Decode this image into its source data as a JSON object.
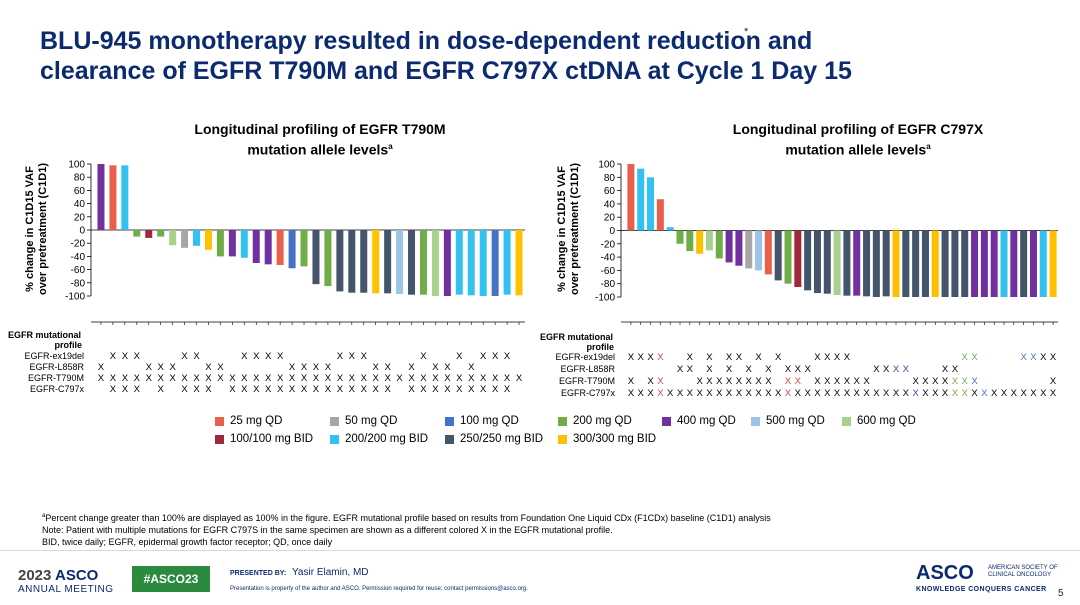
{
  "slide": {
    "title_line1": "BLU-945 monotherapy resulted in dose-dependent reduction and",
    "title_line2": "clearance of EGFR T790M and EGFR C797X ctDNA at Cycle 1 Day 15",
    "mark": "*",
    "page_number": "5"
  },
  "charts": {
    "left": {
      "title_line1": "Longitudinal profiling of EGFR T790M",
      "title_line2_main": "mutation allele levels",
      "title_sup": "a",
      "ylabel_line1": "% change in C1D15 VAF",
      "ylabel_line2": "over pretreatment (C1D1)"
    },
    "right": {
      "title_line1": "Longitudinal profiling of EGFR C797X",
      "title_line2_main": "mutation allele levels",
      "title_sup": "a",
      "ylabel_line1": "% change in C1D15 VAF",
      "ylabel_line2": "over pretreatment (C1D1)"
    }
  },
  "mutational_profile": {
    "header_line1": "EGFR mutational",
    "header_line2": "profile",
    "rows": [
      "EGFR-ex19del",
      "EGFR-L858R",
      "EGFR-T790M",
      "EGFR-C797x"
    ]
  },
  "legend": {
    "items": [
      {
        "label": "25 mg QD",
        "color": "#e8604c"
      },
      {
        "label": "50 mg QD",
        "color": "#a6a6a6"
      },
      {
        "label": "100 mg QD",
        "color": "#4472c4"
      },
      {
        "label": "200 mg QD",
        "color": "#70ad47"
      },
      {
        "label": "400 mg QD",
        "color": "#7030a0"
      },
      {
        "label": "500 mg QD",
        "color": "#9dc3e6"
      },
      {
        "label": "600 mg QD",
        "color": "#a9d18e"
      },
      {
        "label": "100/100 mg BID",
        "color": "#a0283c"
      },
      {
        "label": "200/200 mg BID",
        "color": "#33c1f0"
      },
      {
        "label": "250/250 mg BID",
        "color": "#44546a"
      },
      {
        "label": "300/300 mg BID",
        "color": "#ffc000"
      }
    ]
  },
  "footnotes": {
    "a_mark": "a",
    "line1": "Percent change greater than 100% are displayed as 100% in the figure. EGFR mutational profile based on results from Foundation One Liquid CDx (F1CDx) baseline (C1D1) analysis",
    "line2": "Note: Patient with multiple mutations for EGFR C797S in the same specimen are shown as a different colored X in the EGFR mutational profile.",
    "line3": "BID, twice daily; EGFR, epidermal growth factor receptor; QD, once daily"
  },
  "footer": {
    "year": "2023",
    "asco": "ASCO",
    "annual_meeting": "ANNUAL MEETING",
    "hashtag": "#ASCO23",
    "presented_by": "PRESENTED BY:",
    "presenter": "Yasir Elamin, MD",
    "disclaimer": "Presentation is property of the author and ASCO. Permission required for reuse; contact permissions@asco.org.",
    "logo": "ASCO",
    "org_line1": "AMERICAN SOCIETY OF",
    "org_line2": "CLINICAL ONCOLOGY",
    "tagline": "KNOWLEDGE CONQUERS CANCER"
  },
  "chart_data": [
    {
      "type": "bar",
      "title": "Longitudinal profiling of EGFR T790M mutation allele levels",
      "xlabel": "",
      "ylabel": "% change in C1D15 VAF over pretreatment (C1D1)",
      "ylim": [
        -100,
        100
      ],
      "yticks": [
        "100",
        "80",
        "60",
        "40",
        "20",
        "0",
        "-20",
        "-40",
        "-60",
        "-80",
        "-100"
      ],
      "values": [
        100,
        98,
        98,
        -10,
        -12,
        -10,
        -23,
        -27,
        -24,
        -30,
        -40,
        -40,
        -42,
        -50,
        -52,
        -53,
        -58,
        -55,
        -82,
        -85,
        -93,
        -95,
        -95,
        -96,
        -96,
        -97,
        -98,
        -98,
        -100,
        -100,
        -98,
        -99,
        -100,
        -100,
        -98,
        -99
      ],
      "doses": [
        "400 mg QD",
        "25 mg QD",
        "200/200 mg BID",
        "200 mg QD",
        "100/100 mg BID",
        "200 mg QD",
        "600 mg QD",
        "50 mg QD",
        "200/200 mg BID",
        "300/300 mg BID",
        "200 mg QD",
        "400 mg QD",
        "200/200 mg BID",
        "400 mg QD",
        "400 mg QD",
        "25 mg QD",
        "100 mg QD",
        "200 mg QD",
        "250/250 mg BID",
        "200 mg QD",
        "250/250 mg BID",
        "250/250 mg BID",
        "250/250 mg BID",
        "300/300 mg BID",
        "250/250 mg BID",
        "500 mg QD",
        "250/250 mg BID",
        "200 mg QD",
        "600 mg QD",
        "400 mg QD",
        "200/200 mg BID",
        "200/200 mg BID",
        "200/200 mg BID",
        "100 mg QD",
        "200/200 mg BID",
        "300/300 mg BID"
      ],
      "mutation_marks": {
        "EGFR-ex19del": [
          "",
          "X",
          "X",
          "X",
          "",
          "",
          "",
          "X",
          "X",
          "",
          "",
          "",
          "X",
          "X",
          "X",
          "X",
          "",
          "",
          "",
          "",
          "X",
          "X",
          "X",
          "",
          "",
          "",
          "",
          "X",
          "",
          "",
          "X",
          "",
          "X",
          "X",
          "X",
          ""
        ],
        "EGFR-L858R": [
          "X",
          "",
          "",
          "",
          "X",
          "X",
          "X",
          "",
          "",
          "X",
          "X",
          "",
          "",
          "",
          "",
          "",
          "X",
          "X",
          "X",
          "X",
          "",
          "",
          "",
          "X",
          "X",
          "",
          "X",
          "",
          "X",
          "X",
          "",
          "X",
          "",
          "",
          "",
          ""
        ],
        "EGFR-T790M": [
          "X",
          "X",
          "X",
          "X",
          "X",
          "X",
          "X",
          "X",
          "X",
          "X",
          "X",
          "X",
          "X",
          "X",
          "X",
          "X",
          "X",
          "X",
          "X",
          "X",
          "X",
          "X",
          "X",
          "X",
          "X",
          "X",
          "X",
          "X",
          "X",
          "X",
          "X",
          "X",
          "X",
          "X",
          "X",
          "X"
        ],
        "EGFR-C797x": [
          "",
          "X",
          "X",
          "X",
          "",
          "X",
          "",
          "X",
          "X",
          "X",
          "",
          "X",
          "X",
          "X",
          "X",
          "X",
          "X",
          "X",
          "X",
          "X",
          "X",
          "X",
          "X",
          "X",
          "X",
          "",
          "X",
          "X",
          "X",
          "X",
          "X",
          "X",
          "X",
          "X",
          "X",
          ""
        ]
      }
    },
    {
      "type": "bar",
      "title": "Longitudinal profiling of EGFR C797X mutation allele levels",
      "xlabel": "",
      "ylabel": "% change in C1D15 VAF over pretreatment (C1D1)",
      "ylim": [
        -100,
        100
      ],
      "yticks": [
        "100",
        "80",
        "60",
        "40",
        "20",
        "0",
        "-20",
        "-40",
        "-60",
        "-80",
        "-100"
      ],
      "values": [
        100,
        93,
        80,
        47,
        5,
        -20,
        -31,
        -35,
        -30,
        -42,
        -48,
        -53,
        -57,
        -60,
        -66,
        -75,
        -80,
        -85,
        -90,
        -94,
        -95,
        -97,
        -98,
        -98,
        -99,
        -100,
        -99,
        -100,
        -100,
        -100,
        -100,
        -100,
        -100,
        -100,
        -100,
        -100,
        -100,
        -100,
        -100,
        -100,
        -100,
        -100,
        -100,
        -100
      ],
      "doses": [
        "25 mg QD",
        "200/200 mg BID",
        "200/200 mg BID",
        "25 mg QD",
        "200/200 mg BID",
        "200 mg QD",
        "200 mg QD",
        "300/300 mg BID",
        "600 mg QD",
        "200 mg QD",
        "400 mg QD",
        "400 mg QD",
        "50 mg QD",
        "500 mg QD",
        "25 mg QD",
        "250/250 mg BID",
        "200 mg QD",
        "100/100 mg BID",
        "250/250 mg BID",
        "250/250 mg BID",
        "250/250 mg BID",
        "600 mg QD",
        "250/250 mg BID",
        "400 mg QD",
        "250/250 mg BID",
        "250/250 mg BID",
        "250/250 mg BID",
        "300/300 mg BID",
        "250/250 mg BID",
        "250/250 mg BID",
        "250/250 mg BID",
        "300/300 mg BID",
        "250/250 mg BID",
        "250/250 mg BID",
        "250/250 mg BID",
        "400 mg QD",
        "400 mg QD",
        "400 mg QD",
        "200/200 mg BID",
        "400 mg QD",
        "250/250 mg BID",
        "400 mg QD",
        "200/200 mg BID",
        "300/300 mg BID"
      ],
      "mutation_marks": {
        "EGFR-ex19del": [
          "X",
          "X",
          "X",
          "X",
          "",
          "",
          "X",
          "",
          "X",
          "",
          "X",
          "X",
          "",
          "X",
          "",
          "X",
          "",
          "",
          "",
          "X",
          "X",
          "X",
          "X",
          "",
          "",
          "",
          "",
          "",
          "",
          "",
          "",
          "",
          "",
          "",
          "X",
          "X",
          "",
          "",
          "",
          "",
          "X",
          "X",
          "X",
          "X"
        ],
        "EGFR-L858R": [
          "",
          "",
          "",
          "",
          "",
          "X",
          "X",
          "",
          "X",
          "",
          "X",
          "",
          "X",
          "",
          "X",
          "",
          "X",
          "X",
          "X",
          "",
          "",
          "",
          "",
          "",
          "",
          "X",
          "X",
          "X",
          "X",
          "",
          "",
          "",
          "X",
          "X",
          "",
          "",
          "",
          "",
          "",
          "",
          "",
          "",
          "",
          ""
        ],
        "EGFR-T790M": [
          "X",
          "",
          "X",
          "X",
          "",
          "",
          "",
          "X",
          "X",
          "X",
          "X",
          "X",
          "X",
          "X",
          "X",
          "",
          "X",
          "X",
          "",
          "X",
          "X",
          "X",
          "X",
          "X",
          "X",
          "",
          "",
          "",
          "",
          "X",
          "X",
          "X",
          "X",
          "X",
          "X",
          "X",
          "",
          "",
          "",
          "",
          "",
          "",
          "",
          "X"
        ],
        "EGFR-C797x": [
          "X",
          "X",
          "X",
          "X",
          "X",
          "X",
          "X",
          "X",
          "X",
          "X",
          "X",
          "X",
          "X",
          "X",
          "X",
          "X",
          "X",
          "X",
          "X",
          "X",
          "X",
          "X",
          "X",
          "X",
          "X",
          "X",
          "X",
          "X",
          "X",
          "X",
          "X",
          "X",
          "X",
          "X",
          "X",
          "X",
          "X",
          "X",
          "X",
          "X",
          "X",
          "X",
          "X",
          "X"
        ]
      },
      "mutation_mark_colors": {
        "EGFR-ex19del": [
          "",
          "",
          "",
          "#e8404c",
          "",
          "",
          "",
          "",
          "",
          "",
          "",
          "",
          "",
          "",
          "",
          "",
          "#e8404c",
          "",
          "",
          "",
          "",
          "",
          "",
          "",
          "",
          "",
          "",
          "",
          "",
          "",
          "",
          "",
          "",
          "",
          "#70ad47",
          "#70ad47",
          "",
          "",
          "",
          "",
          "#4472c4",
          "#4472c4",
          "",
          ""
        ],
        "EGFR-L858R": [
          "",
          "",
          "",
          "",
          "",
          "",
          "",
          "",
          "",
          "",
          "",
          "",
          "",
          "",
          "",
          "",
          "",
          "",
          "",
          "",
          "",
          "",
          "",
          "",
          "",
          "",
          "",
          "#7030a0",
          "#7030a0",
          "",
          "",
          "",
          "",
          "",
          "",
          "",
          "",
          "",
          "",
          "",
          "",
          "",
          "",
          ""
        ],
        "EGFR-T790M": [
          "",
          "",
          "",
          "#e8404c",
          "",
          "",
          "",
          "",
          "",
          "",
          "",
          "",
          "",
          "",
          "",
          "",
          "#e8404c",
          "#e8404c",
          "",
          "",
          "",
          "",
          "",
          "",
          "",
          "",
          "",
          "",
          "",
          "",
          "",
          "",
          "",
          "#70ad47",
          "#70ad47",
          "#4472c4",
          "#4472c4",
          "",
          "",
          "",
          "",
          "",
          "",
          ""
        ],
        "EGFR-C797x": [
          "",
          "",
          "",
          "#e8404c",
          "",
          "",
          "",
          "",
          "",
          "",
          "",
          "",
          "",
          "",
          "",
          "",
          "#e8404c",
          "",
          "",
          "",
          "",
          "",
          "",
          "",
          "",
          "",
          "",
          "",
          "",
          "#7030a0",
          "",
          "",
          "",
          "#70ad47",
          "#70ad47",
          "",
          "#4472c4",
          "",
          "",
          "",
          "",
          "",
          "",
          ""
        ]
      }
    }
  ]
}
